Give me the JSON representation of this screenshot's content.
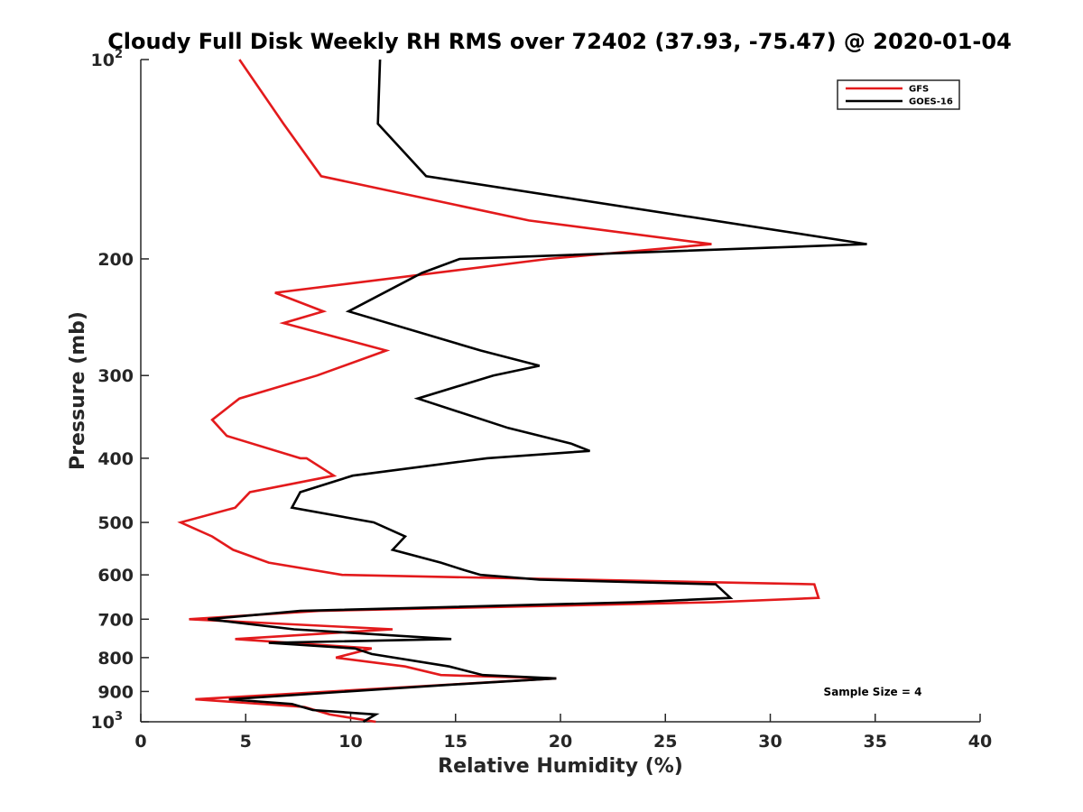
{
  "chart_data": {
    "type": "line",
    "title": "Cloudy Full Disk Weekly RH RMS over 72402 (37.93, -75.47) @ 2020-01-04",
    "xlabel": "Relative Humidity (%)",
    "ylabel": "Pressure (mb)",
    "xlim": [
      0,
      40
    ],
    "ylim": [
      100,
      1000
    ],
    "yscale": "log",
    "y_reversed": true,
    "xticks": [
      0,
      5,
      10,
      15,
      20,
      25,
      30,
      35,
      40
    ],
    "yticks": [
      {
        "value": 100,
        "label": "10",
        "sup": "2"
      },
      {
        "value": 200,
        "label": "200",
        "sup": ""
      },
      {
        "value": 300,
        "label": "300",
        "sup": ""
      },
      {
        "value": 400,
        "label": "400",
        "sup": ""
      },
      {
        "value": 500,
        "label": "500",
        "sup": ""
      },
      {
        "value": 600,
        "label": "600",
        "sup": ""
      },
      {
        "value": 700,
        "label": "700",
        "sup": ""
      },
      {
        "value": 800,
        "label": "800",
        "sup": ""
      },
      {
        "value": 900,
        "label": "900",
        "sup": ""
      },
      {
        "value": 1000,
        "label": "10",
        "sup": "3"
      }
    ],
    "legend_position": "top-right",
    "grid": false,
    "annotation": "Sample Size = 4",
    "series": [
      {
        "name": "GFS",
        "color": "#e31a1c",
        "points": [
          [
            4.7,
            100
          ],
          [
            6.8,
            125
          ],
          [
            8.6,
            150
          ],
          [
            18.5,
            175
          ],
          [
            27.2,
            190
          ],
          [
            19.4,
            200
          ],
          [
            6.4,
            225
          ],
          [
            8.7,
            240
          ],
          [
            6.8,
            250
          ],
          [
            11.7,
            275
          ],
          [
            8.4,
            300
          ],
          [
            4.7,
            325
          ],
          [
            3.4,
            350
          ],
          [
            4.1,
            370
          ],
          [
            7.6,
            400
          ],
          [
            7.9,
            400
          ],
          [
            9.2,
            425
          ],
          [
            5.2,
            450
          ],
          [
            4.5,
            475
          ],
          [
            1.9,
            500
          ],
          [
            3.4,
            525
          ],
          [
            4.4,
            550
          ],
          [
            6.1,
            575
          ],
          [
            9.6,
            600
          ],
          [
            32.1,
            620
          ],
          [
            32.3,
            650
          ],
          [
            27.3,
            660
          ],
          [
            8.5,
            680
          ],
          [
            2.3,
            700
          ],
          [
            12.0,
            725
          ],
          [
            4.5,
            750
          ],
          [
            11.0,
            775
          ],
          [
            9.3,
            800
          ],
          [
            12.6,
            825
          ],
          [
            14.3,
            850
          ],
          [
            19.8,
            860
          ],
          [
            2.6,
            925
          ],
          [
            7.8,
            950
          ],
          [
            9.0,
            975
          ],
          [
            11.2,
            1000
          ]
        ]
      },
      {
        "name": "GOES-16",
        "color": "#000000",
        "points": [
          [
            11.4,
            100
          ],
          [
            11.3,
            125
          ],
          [
            13.6,
            150
          ],
          [
            34.6,
            190
          ],
          [
            15.2,
            200
          ],
          [
            13.4,
            210
          ],
          [
            9.9,
            240
          ],
          [
            16.2,
            275
          ],
          [
            19.0,
            290
          ],
          [
            16.8,
            300
          ],
          [
            13.2,
            325
          ],
          [
            17.5,
            360
          ],
          [
            20.5,
            380
          ],
          [
            21.4,
            390
          ],
          [
            16.5,
            400
          ],
          [
            10.1,
            425
          ],
          [
            7.6,
            450
          ],
          [
            7.2,
            475
          ],
          [
            11.1,
            500
          ],
          [
            12.6,
            525
          ],
          [
            12.0,
            550
          ],
          [
            14.3,
            575
          ],
          [
            15.4,
            590
          ],
          [
            16.2,
            600
          ],
          [
            19.0,
            610
          ],
          [
            27.4,
            620
          ],
          [
            28.1,
            650
          ],
          [
            23.5,
            660
          ],
          [
            7.6,
            680
          ],
          [
            3.2,
            700
          ],
          [
            7.3,
            725
          ],
          [
            14.8,
            750
          ],
          [
            6.1,
            760
          ],
          [
            10.2,
            775
          ],
          [
            11.0,
            790
          ],
          [
            14.7,
            825
          ],
          [
            16.3,
            850
          ],
          [
            19.8,
            860
          ],
          [
            14.5,
            880
          ],
          [
            4.2,
            925
          ],
          [
            7.2,
            940
          ],
          [
            8.2,
            960
          ],
          [
            11.2,
            975
          ],
          [
            10.6,
            1000
          ]
        ]
      }
    ]
  }
}
